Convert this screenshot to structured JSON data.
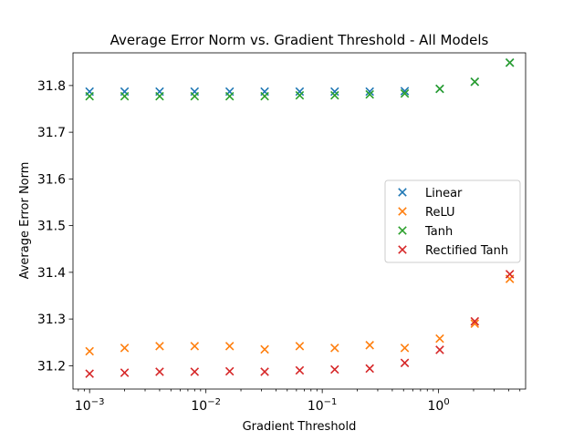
{
  "chart_data": {
    "type": "scatter",
    "title": "Average Error Norm vs. Gradient Threshold - All Models",
    "xlabel": "Gradient Threshold",
    "ylabel": "Average Error Norm",
    "xscale": "log",
    "xlim": [
      0.00072,
      5.6
    ],
    "ylim": [
      31.15,
      31.87
    ],
    "x_ticks": [
      {
        "value": 0.001,
        "base": "10",
        "exp": "−3"
      },
      {
        "value": 0.01,
        "base": "10",
        "exp": "−2"
      },
      {
        "value": 0.1,
        "base": "10",
        "exp": "−1"
      },
      {
        "value": 1,
        "base": "10",
        "exp": "0"
      }
    ],
    "y_ticks": [
      {
        "value": 31.2,
        "label": "31.2"
      },
      {
        "value": 31.3,
        "label": "31.3"
      },
      {
        "value": 31.4,
        "label": "31.4"
      },
      {
        "value": 31.5,
        "label": "31.5"
      },
      {
        "value": 31.6,
        "label": "31.6"
      },
      {
        "value": 31.7,
        "label": "31.7"
      },
      {
        "value": 31.8,
        "label": "31.8"
      }
    ],
    "grid": false,
    "legend_position": "center-right",
    "marker": "x",
    "x": [
      0.001,
      0.002,
      0.004,
      0.008,
      0.016,
      0.032,
      0.064,
      0.128,
      0.256,
      0.512,
      1.024,
      2.048,
      4.096
    ],
    "series": [
      {
        "name": "Linear",
        "color": "#1f77b4",
        "values": [
          31.787,
          31.787,
          31.787,
          31.787,
          31.787,
          31.787,
          31.787,
          31.787,
          31.787,
          31.788,
          31.793,
          31.808,
          31.849
        ]
      },
      {
        "name": "ReLU",
        "color": "#ff7f0e",
        "values": [
          31.231,
          31.238,
          31.242,
          31.242,
          31.242,
          31.235,
          31.242,
          31.238,
          31.244,
          31.238,
          31.258,
          31.29,
          31.386
        ]
      },
      {
        "name": "Tanh",
        "color": "#2ca02c",
        "values": [
          31.777,
          31.777,
          31.777,
          31.777,
          31.777,
          31.777,
          31.779,
          31.779,
          31.781,
          31.783,
          31.793,
          31.808,
          31.849
        ]
      },
      {
        "name": "Rectified Tanh",
        "color": "#d62728",
        "values": [
          31.183,
          31.185,
          31.187,
          31.187,
          31.188,
          31.187,
          31.19,
          31.192,
          31.194,
          31.206,
          31.234,
          31.295,
          31.396
        ]
      }
    ]
  }
}
